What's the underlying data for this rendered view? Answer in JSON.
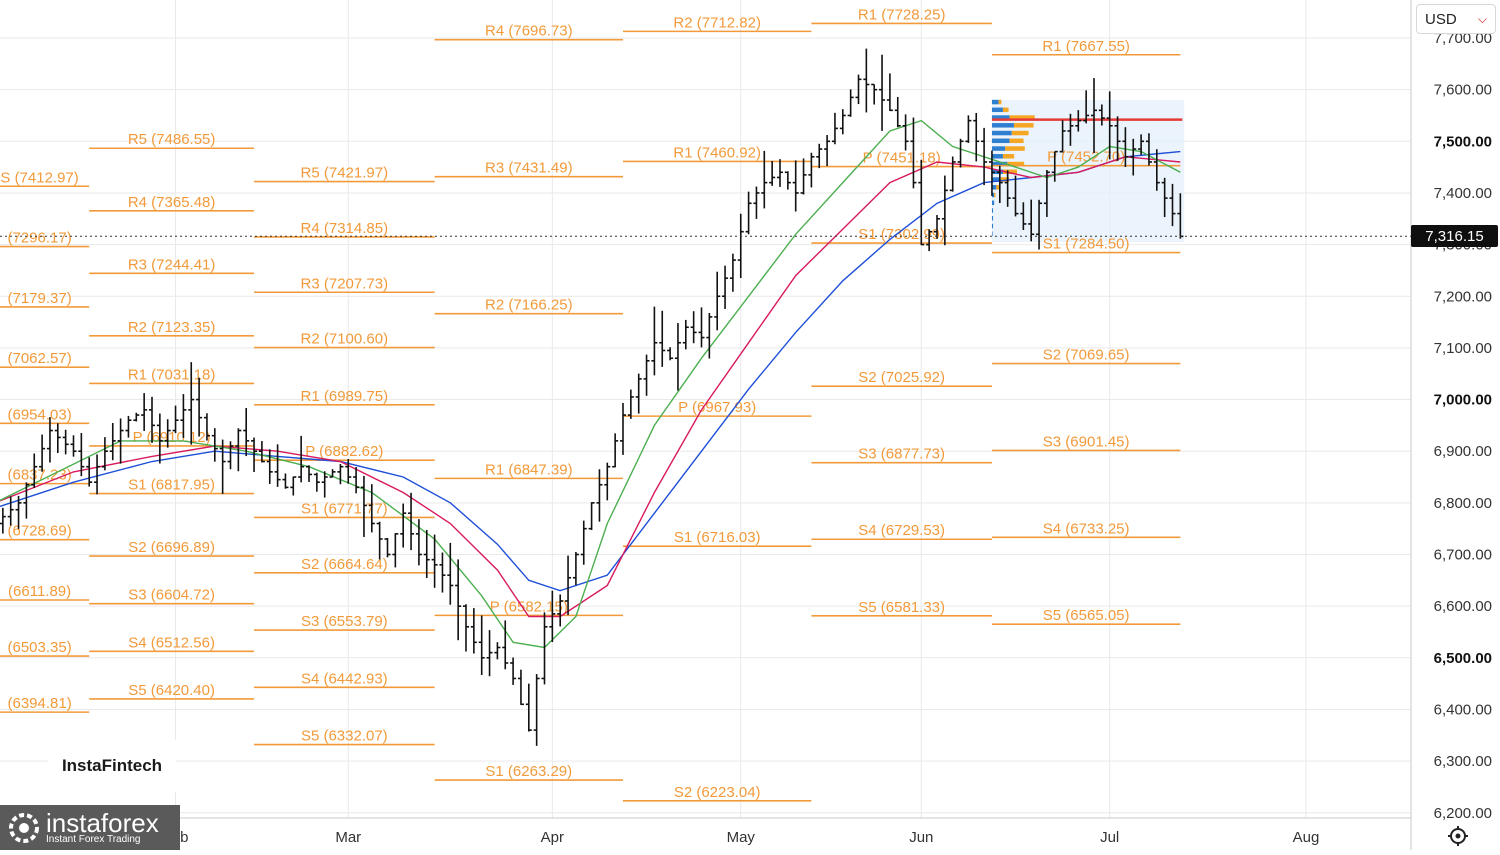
{
  "toolbar": {
    "currency": "USD"
  },
  "price_axis": {
    "ticks": [
      {
        "value": 7700,
        "label": "7,700.00",
        "bold": false
      },
      {
        "value": 7600,
        "label": "7,600.00",
        "bold": false
      },
      {
        "value": 7500,
        "label": "7,500.00",
        "bold": true
      },
      {
        "value": 7400,
        "label": "7,400.00",
        "bold": false
      },
      {
        "value": 7300,
        "label": "7,300.00",
        "bold": false
      },
      {
        "value": 7200,
        "label": "7,200.00",
        "bold": false
      },
      {
        "value": 7100,
        "label": "7,100.00",
        "bold": false
      },
      {
        "value": 7000,
        "label": "7,000.00",
        "bold": true
      },
      {
        "value": 6900,
        "label": "6,900.00",
        "bold": false
      },
      {
        "value": 6800,
        "label": "6,800.00",
        "bold": false
      },
      {
        "value": 6700,
        "label": "6,700.00",
        "bold": false
      },
      {
        "value": 6600,
        "label": "6,600.00",
        "bold": false
      },
      {
        "value": 6500,
        "label": "6,500.00",
        "bold": true
      },
      {
        "value": 6400,
        "label": "6,400.00",
        "bold": false
      },
      {
        "value": 6300,
        "label": "6,300.00",
        "bold": false
      },
      {
        "value": 6200,
        "label": "6,200.00",
        "bold": false
      }
    ],
    "current_price": 7316.15,
    "current_price_label": "7,316.15"
  },
  "brand": {
    "badge": "InstaFintech",
    "logo_name": "instaforex",
    "logo_tagline": "Instant Forex Trading"
  },
  "colors": {
    "pivot": "#f29a3a",
    "bar": "#111111",
    "sma_fast": "#4caf50",
    "sma_mid": "#d81b60",
    "sma_slow": "#1e4fd8",
    "grid": "#e9e9e9",
    "poc": "#e53935",
    "profile_blue": "#2f7fd1",
    "profile_orange": "#f5a623"
  },
  "chart_data": {
    "type": "bar",
    "title": "",
    "instrument_currency": "USD",
    "x_axis": {
      "range_index": [
        0,
        151
      ],
      "months": [
        {
          "label": "Feb",
          "index": 23
        },
        {
          "label": "Mar",
          "index": 45
        },
        {
          "label": "Apr",
          "index": 71
        },
        {
          "label": "May",
          "index": 95
        },
        {
          "label": "Jun",
          "index": 118
        },
        {
          "label": "Jul",
          "index": 142
        },
        {
          "label": "Aug",
          "index": 167
        }
      ]
    },
    "ylim": [
      6190,
      7760
    ],
    "grid": true,
    "pivot_levels": [
      {
        "label": "S (7412.97)",
        "value": 7412.97,
        "period": 0
      },
      {
        "label": "(7296.17)",
        "value": 7296.17,
        "period": 0
      },
      {
        "label": "(7179.37)",
        "value": 7179.37,
        "period": 0
      },
      {
        "label": "(7062.57)",
        "value": 7062.57,
        "period": 0
      },
      {
        "label": "(6954.03)",
        "value": 6954.03,
        "period": 0
      },
      {
        "label": "(6837.23)",
        "value": 6837.23,
        "period": 0
      },
      {
        "label": "(6728.69)",
        "value": 6728.69,
        "period": 0
      },
      {
        "label": "(6611.89)",
        "value": 6611.89,
        "period": 0
      },
      {
        "label": "(6503.35)",
        "value": 6503.35,
        "period": 0
      },
      {
        "label": "(6394.81)",
        "value": 6394.81,
        "period": 0
      },
      {
        "label": "R5 (7486.55)",
        "value": 7486.55,
        "period": 1
      },
      {
        "label": "R4 (7365.48)",
        "value": 7365.48,
        "period": 1
      },
      {
        "label": "R3 (7244.41)",
        "value": 7244.41,
        "period": 1
      },
      {
        "label": "R2 (7123.35)",
        "value": 7123.35,
        "period": 1
      },
      {
        "label": "R1 (7031.18)",
        "value": 7031.18,
        "period": 1
      },
      {
        "label": "P (6910.12)",
        "value": 6910.12,
        "period": 1
      },
      {
        "label": "S1 (6817.95)",
        "value": 6817.95,
        "period": 1
      },
      {
        "label": "S2 (6696.89)",
        "value": 6696.89,
        "period": 1
      },
      {
        "label": "S3 (6604.72)",
        "value": 6604.72,
        "period": 1
      },
      {
        "label": "S4 (6512.56)",
        "value": 6512.56,
        "period": 1
      },
      {
        "label": "S5 (6420.40)",
        "value": 6420.4,
        "period": 1
      },
      {
        "label": "R5 (7421.97)",
        "value": 7421.97,
        "period": 2
      },
      {
        "label": "R4 (7314.85)",
        "value": 7314.85,
        "period": 2
      },
      {
        "label": "R3 (7207.73)",
        "value": 7207.73,
        "period": 2
      },
      {
        "label": "R2 (7100.60)",
        "value": 7100.6,
        "period": 2
      },
      {
        "label": "R1 (6989.75)",
        "value": 6989.75,
        "period": 2
      },
      {
        "label": "P (6882.62)",
        "value": 6882.62,
        "period": 2
      },
      {
        "label": "S1 (6771.77)",
        "value": 6771.77,
        "period": 2
      },
      {
        "label": "S2 (6664.64)",
        "value": 6664.64,
        "period": 2
      },
      {
        "label": "S3 (6553.79)",
        "value": 6553.79,
        "period": 2
      },
      {
        "label": "S4 (6442.93)",
        "value": 6442.93,
        "period": 2
      },
      {
        "label": "S5 (6332.07)",
        "value": 6332.07,
        "period": 2
      },
      {
        "label": "R4 (7696.73)",
        "value": 7696.73,
        "period": 3
      },
      {
        "label": "R3 (7431.49)",
        "value": 7431.49,
        "period": 3
      },
      {
        "label": "R2 (7166.25)",
        "value": 7166.25,
        "period": 3
      },
      {
        "label": "R1 (6847.39)",
        "value": 6847.39,
        "period": 3
      },
      {
        "label": "P (6582.15)",
        "value": 6582.15,
        "period": 3
      },
      {
        "label": "S1 (6263.29)",
        "value": 6263.29,
        "period": 3
      },
      {
        "label": "R2 (7712.82)",
        "value": 7712.82,
        "period": 4
      },
      {
        "label": "R1 (7460.92)",
        "value": 7460.92,
        "period": 4
      },
      {
        "label": "P (6967.93)",
        "value": 6967.93,
        "period": 4
      },
      {
        "label": "S1 (6716.03)",
        "value": 6716.03,
        "period": 4
      },
      {
        "label": "S2 (6223.04)",
        "value": 6223.04,
        "period": 4
      },
      {
        "label": "R1 (7728.25)",
        "value": 7728.25,
        "period": 5
      },
      {
        "label": "P (7451.18)",
        "value": 7451.18,
        "period": 5
      },
      {
        "label": "S1 (7302.99)",
        "value": 7302.99,
        "period": 5
      },
      {
        "label": "S2 (7025.92)",
        "value": 7025.92,
        "period": 5
      },
      {
        "label": "S3 (6877.73)",
        "value": 6877.73,
        "period": 5
      },
      {
        "label": "S4 (6729.53)",
        "value": 6729.53,
        "period": 5
      },
      {
        "label": "S5 (6581.33)",
        "value": 6581.33,
        "period": 5
      },
      {
        "label": "R1 (7667.55)",
        "value": 7667.55,
        "period": 6
      },
      {
        "label": "P (7452.70)",
        "value": 7452.7,
        "period": 6
      },
      {
        "label": "S1 (7284.50)",
        "value": 7284.5,
        "period": 6
      },
      {
        "label": "S2 (7069.65)",
        "value": 7069.65,
        "period": 6
      },
      {
        "label": "S3 (6901.45)",
        "value": 6901.45,
        "period": 6
      },
      {
        "label": "S4 (6733.25)",
        "value": 6733.25,
        "period": 6
      },
      {
        "label": "S5 (6565.05)",
        "value": 6565.05,
        "period": 6
      }
    ],
    "pivot_periods": [
      {
        "start": 0,
        "end": 12
      },
      {
        "start": 12,
        "end": 33
      },
      {
        "start": 33,
        "end": 56
      },
      {
        "start": 56,
        "end": 80
      },
      {
        "start": 80,
        "end": 104
      },
      {
        "start": 104,
        "end": 127
      },
      {
        "start": 127,
        "end": 151
      }
    ],
    "close_keypoints": [
      [
        0,
        6760
      ],
      [
        3,
        6800
      ],
      [
        5,
        6870
      ],
      [
        7,
        6940
      ],
      [
        10,
        6900
      ],
      [
        12,
        6840
      ],
      [
        14,
        6900
      ],
      [
        17,
        6960
      ],
      [
        19,
        6980
      ],
      [
        21,
        6920
      ],
      [
        23,
        6960
      ],
      [
        25,
        7000
      ],
      [
        27,
        6930
      ],
      [
        29,
        6880
      ],
      [
        31,
        6940
      ],
      [
        33,
        6900
      ],
      [
        35,
        6860
      ],
      [
        37,
        6830
      ],
      [
        39,
        6870
      ],
      [
        41,
        6840
      ],
      [
        44,
        6870
      ],
      [
        46,
        6830
      ],
      [
        48,
        6760
      ],
      [
        50,
        6700
      ],
      [
        52,
        6780
      ],
      [
        54,
        6700
      ],
      [
        56,
        6680
      ],
      [
        58,
        6640
      ],
      [
        60,
        6560
      ],
      [
        62,
        6500
      ],
      [
        64,
        6520
      ],
      [
        66,
        6460
      ],
      [
        68,
        6360
      ],
      [
        70,
        6560
      ],
      [
        72,
        6610
      ],
      [
        74,
        6700
      ],
      [
        76,
        6800
      ],
      [
        78,
        6870
      ],
      [
        80,
        6970
      ],
      [
        82,
        7040
      ],
      [
        84,
        7110
      ],
      [
        86,
        7080
      ],
      [
        88,
        7140
      ],
      [
        90,
        7120
      ],
      [
        92,
        7200
      ],
      [
        94,
        7270
      ],
      [
        96,
        7380
      ],
      [
        98,
        7420
      ],
      [
        100,
        7440
      ],
      [
        102,
        7400
      ],
      [
        104,
        7470
      ],
      [
        106,
        7500
      ],
      [
        108,
        7550
      ],
      [
        110,
        7620
      ],
      [
        112,
        7600
      ],
      [
        114,
        7560
      ],
      [
        116,
        7500
      ],
      [
        117,
        7420
      ],
      [
        118,
        7300
      ],
      [
        120,
        7350
      ],
      [
        122,
        7460
      ],
      [
        124,
        7540
      ],
      [
        126,
        7460
      ],
      [
        128,
        7420
      ],
      [
        130,
        7360
      ],
      [
        132,
        7320
      ],
      [
        134,
        7440
      ],
      [
        136,
        7520
      ],
      [
        138,
        7540
      ],
      [
        140,
        7560
      ],
      [
        142,
        7530
      ],
      [
        144,
        7470
      ],
      [
        146,
        7500
      ],
      [
        148,
        7420
      ],
      [
        150,
        7360
      ],
      [
        151,
        7316
      ]
    ],
    "sma_fast": [
      [
        0,
        6800
      ],
      [
        8,
        6860
      ],
      [
        16,
        6920
      ],
      [
        24,
        6920
      ],
      [
        32,
        6900
      ],
      [
        40,
        6870
      ],
      [
        48,
        6820
      ],
      [
        56,
        6730
      ],
      [
        62,
        6620
      ],
      [
        66,
        6530
      ],
      [
        70,
        6520
      ],
      [
        74,
        6580
      ],
      [
        78,
        6760
      ],
      [
        84,
        6950
      ],
      [
        90,
        7080
      ],
      [
        96,
        7200
      ],
      [
        102,
        7320
      ],
      [
        108,
        7420
      ],
      [
        114,
        7520
      ],
      [
        118,
        7540
      ],
      [
        122,
        7490
      ],
      [
        126,
        7470
      ],
      [
        130,
        7450
      ],
      [
        134,
        7430
      ],
      [
        138,
        7450
      ],
      [
        142,
        7490
      ],
      [
        146,
        7480
      ],
      [
        151,
        7440
      ]
    ],
    "sma_mid": [
      [
        0,
        6800
      ],
      [
        10,
        6860
      ],
      [
        20,
        6890
      ],
      [
        28,
        6910
      ],
      [
        36,
        6900
      ],
      [
        44,
        6880
      ],
      [
        52,
        6820
      ],
      [
        58,
        6760
      ],
      [
        64,
        6670
      ],
      [
        68,
        6580
      ],
      [
        72,
        6580
      ],
      [
        78,
        6640
      ],
      [
        84,
        6820
      ],
      [
        90,
        6980
      ],
      [
        96,
        7110
      ],
      [
        102,
        7240
      ],
      [
        108,
        7330
      ],
      [
        114,
        7420
      ],
      [
        120,
        7460
      ],
      [
        126,
        7450
      ],
      [
        132,
        7430
      ],
      [
        138,
        7440
      ],
      [
        144,
        7470
      ],
      [
        151,
        7460
      ]
    ],
    "sma_slow": [
      [
        0,
        6790
      ],
      [
        10,
        6840
      ],
      [
        20,
        6880
      ],
      [
        28,
        6900
      ],
      [
        36,
        6890
      ],
      [
        44,
        6880
      ],
      [
        52,
        6850
      ],
      [
        58,
        6800
      ],
      [
        64,
        6720
      ],
      [
        68,
        6650
      ],
      [
        72,
        6630
      ],
      [
        78,
        6660
      ],
      [
        84,
        6780
      ],
      [
        90,
        6900
      ],
      [
        96,
        7020
      ],
      [
        102,
        7130
      ],
      [
        108,
        7230
      ],
      [
        114,
        7310
      ],
      [
        120,
        7380
      ],
      [
        126,
        7420
      ],
      [
        132,
        7430
      ],
      [
        138,
        7440
      ],
      [
        144,
        7470
      ],
      [
        151,
        7480
      ]
    ],
    "volume_profile": {
      "start_index": 127,
      "end_index": 151,
      "range": [
        7305,
        7580
      ],
      "poc": 7542,
      "rows": [
        {
          "price": 7575,
          "up": 0.3,
          "down": 0.1
        },
        {
          "price": 7560,
          "up": 0.5,
          "down": 0.2
        },
        {
          "price": 7545,
          "up": 0.8,
          "down": 0.9
        },
        {
          "price": 7530,
          "up": 1.0,
          "down": 0.7
        },
        {
          "price": 7515,
          "up": 0.9,
          "down": 0.6
        },
        {
          "price": 7500,
          "up": 0.8,
          "down": 0.5
        },
        {
          "price": 7485,
          "up": 0.6,
          "down": 0.7
        },
        {
          "price": 7470,
          "up": 0.5,
          "down": 0.4
        },
        {
          "price": 7455,
          "up": 0.7,
          "down": 0.6
        },
        {
          "price": 7440,
          "up": 0.5,
          "down": 0.5
        },
        {
          "price": 7425,
          "up": 0.4,
          "down": 0.3
        },
        {
          "price": 7410,
          "up": 0.2,
          "down": 0.1
        },
        {
          "price": 7395,
          "up": 0.1,
          "down": 0.05
        },
        {
          "price": 7380,
          "up": 0.1,
          "down": 0.0
        },
        {
          "price": 7365,
          "up": 0.05,
          "down": 0.0
        },
        {
          "price": 7350,
          "up": 0.05,
          "down": 0.0
        },
        {
          "price": 7335,
          "up": 0.05,
          "down": 0.0
        },
        {
          "price": 7320,
          "up": 0.03,
          "down": 0.0
        }
      ]
    }
  }
}
